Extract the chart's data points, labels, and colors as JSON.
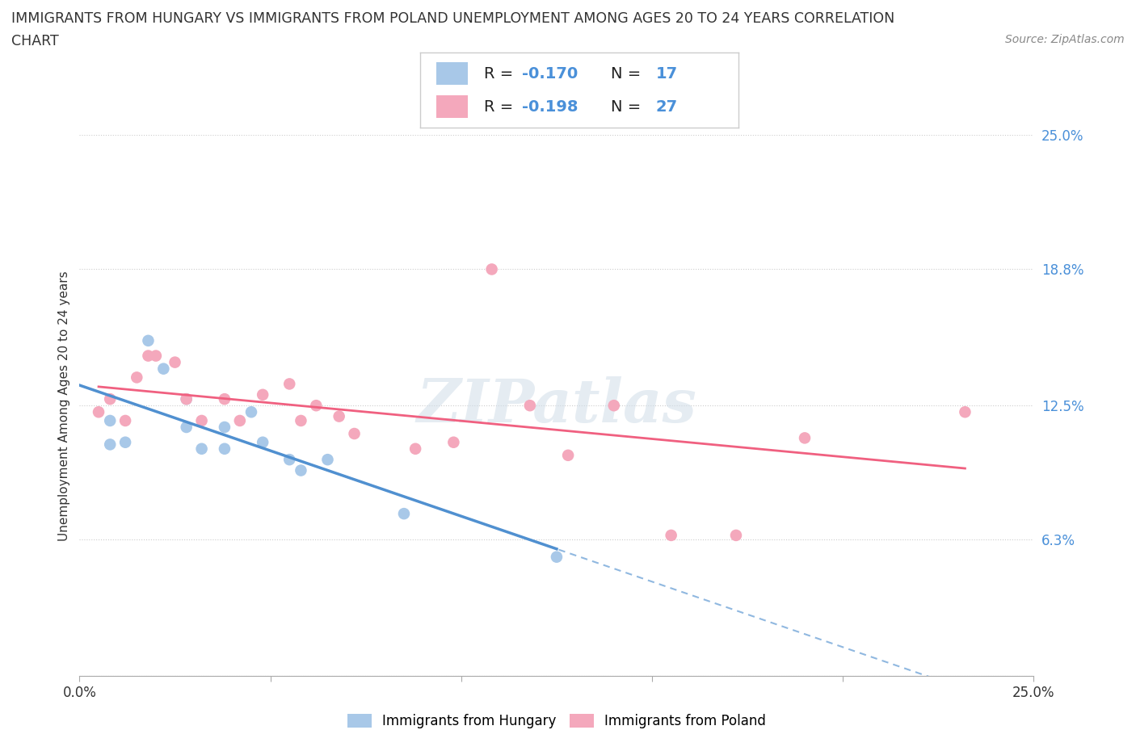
{
  "title_line1": "IMMIGRANTS FROM HUNGARY VS IMMIGRANTS FROM POLAND UNEMPLOYMENT AMONG AGES 20 TO 24 YEARS CORRELATION",
  "title_line2": "CHART",
  "source": "Source: ZipAtlas.com",
  "ylabel": "Unemployment Among Ages 20 to 24 years",
  "xlim": [
    0,
    0.25
  ],
  "ylim": [
    0,
    0.25
  ],
  "xticks": [
    0.0,
    0.05,
    0.1,
    0.15,
    0.2,
    0.25
  ],
  "yticks": [
    0.0,
    0.063,
    0.125,
    0.188,
    0.25
  ],
  "hungary_R": -0.17,
  "hungary_N": 17,
  "poland_R": -0.198,
  "poland_N": 27,
  "hungary_color": "#a8c8e8",
  "poland_color": "#f4a8bc",
  "hungary_line_color": "#5090d0",
  "poland_line_color": "#f06080",
  "trend_dashed_color": "#90b8e0",
  "hungary_scatter_x": [
    0.008,
    0.008,
    0.012,
    0.018,
    0.022,
    0.028,
    0.028,
    0.032,
    0.038,
    0.038,
    0.045,
    0.048,
    0.055,
    0.058,
    0.065,
    0.085,
    0.125
  ],
  "hungary_scatter_y": [
    0.118,
    0.107,
    0.108,
    0.155,
    0.142,
    0.128,
    0.115,
    0.105,
    0.115,
    0.105,
    0.122,
    0.108,
    0.1,
    0.095,
    0.1,
    0.075,
    0.055
  ],
  "poland_scatter_x": [
    0.005,
    0.008,
    0.012,
    0.015,
    0.018,
    0.02,
    0.025,
    0.028,
    0.032,
    0.038,
    0.042,
    0.048,
    0.055,
    0.058,
    0.062,
    0.068,
    0.072,
    0.088,
    0.098,
    0.108,
    0.118,
    0.128,
    0.14,
    0.155,
    0.172,
    0.19,
    0.232
  ],
  "poland_scatter_y": [
    0.122,
    0.128,
    0.118,
    0.138,
    0.148,
    0.148,
    0.145,
    0.128,
    0.118,
    0.128,
    0.118,
    0.13,
    0.135,
    0.118,
    0.125,
    0.12,
    0.112,
    0.105,
    0.108,
    0.188,
    0.125,
    0.102,
    0.125,
    0.065,
    0.065,
    0.11,
    0.122
  ],
  "background_color": "#ffffff",
  "watermark_text": "ZIPatlas",
  "legend_hungary_label": "Immigrants from Hungary",
  "legend_poland_label": "Immigrants from Poland"
}
